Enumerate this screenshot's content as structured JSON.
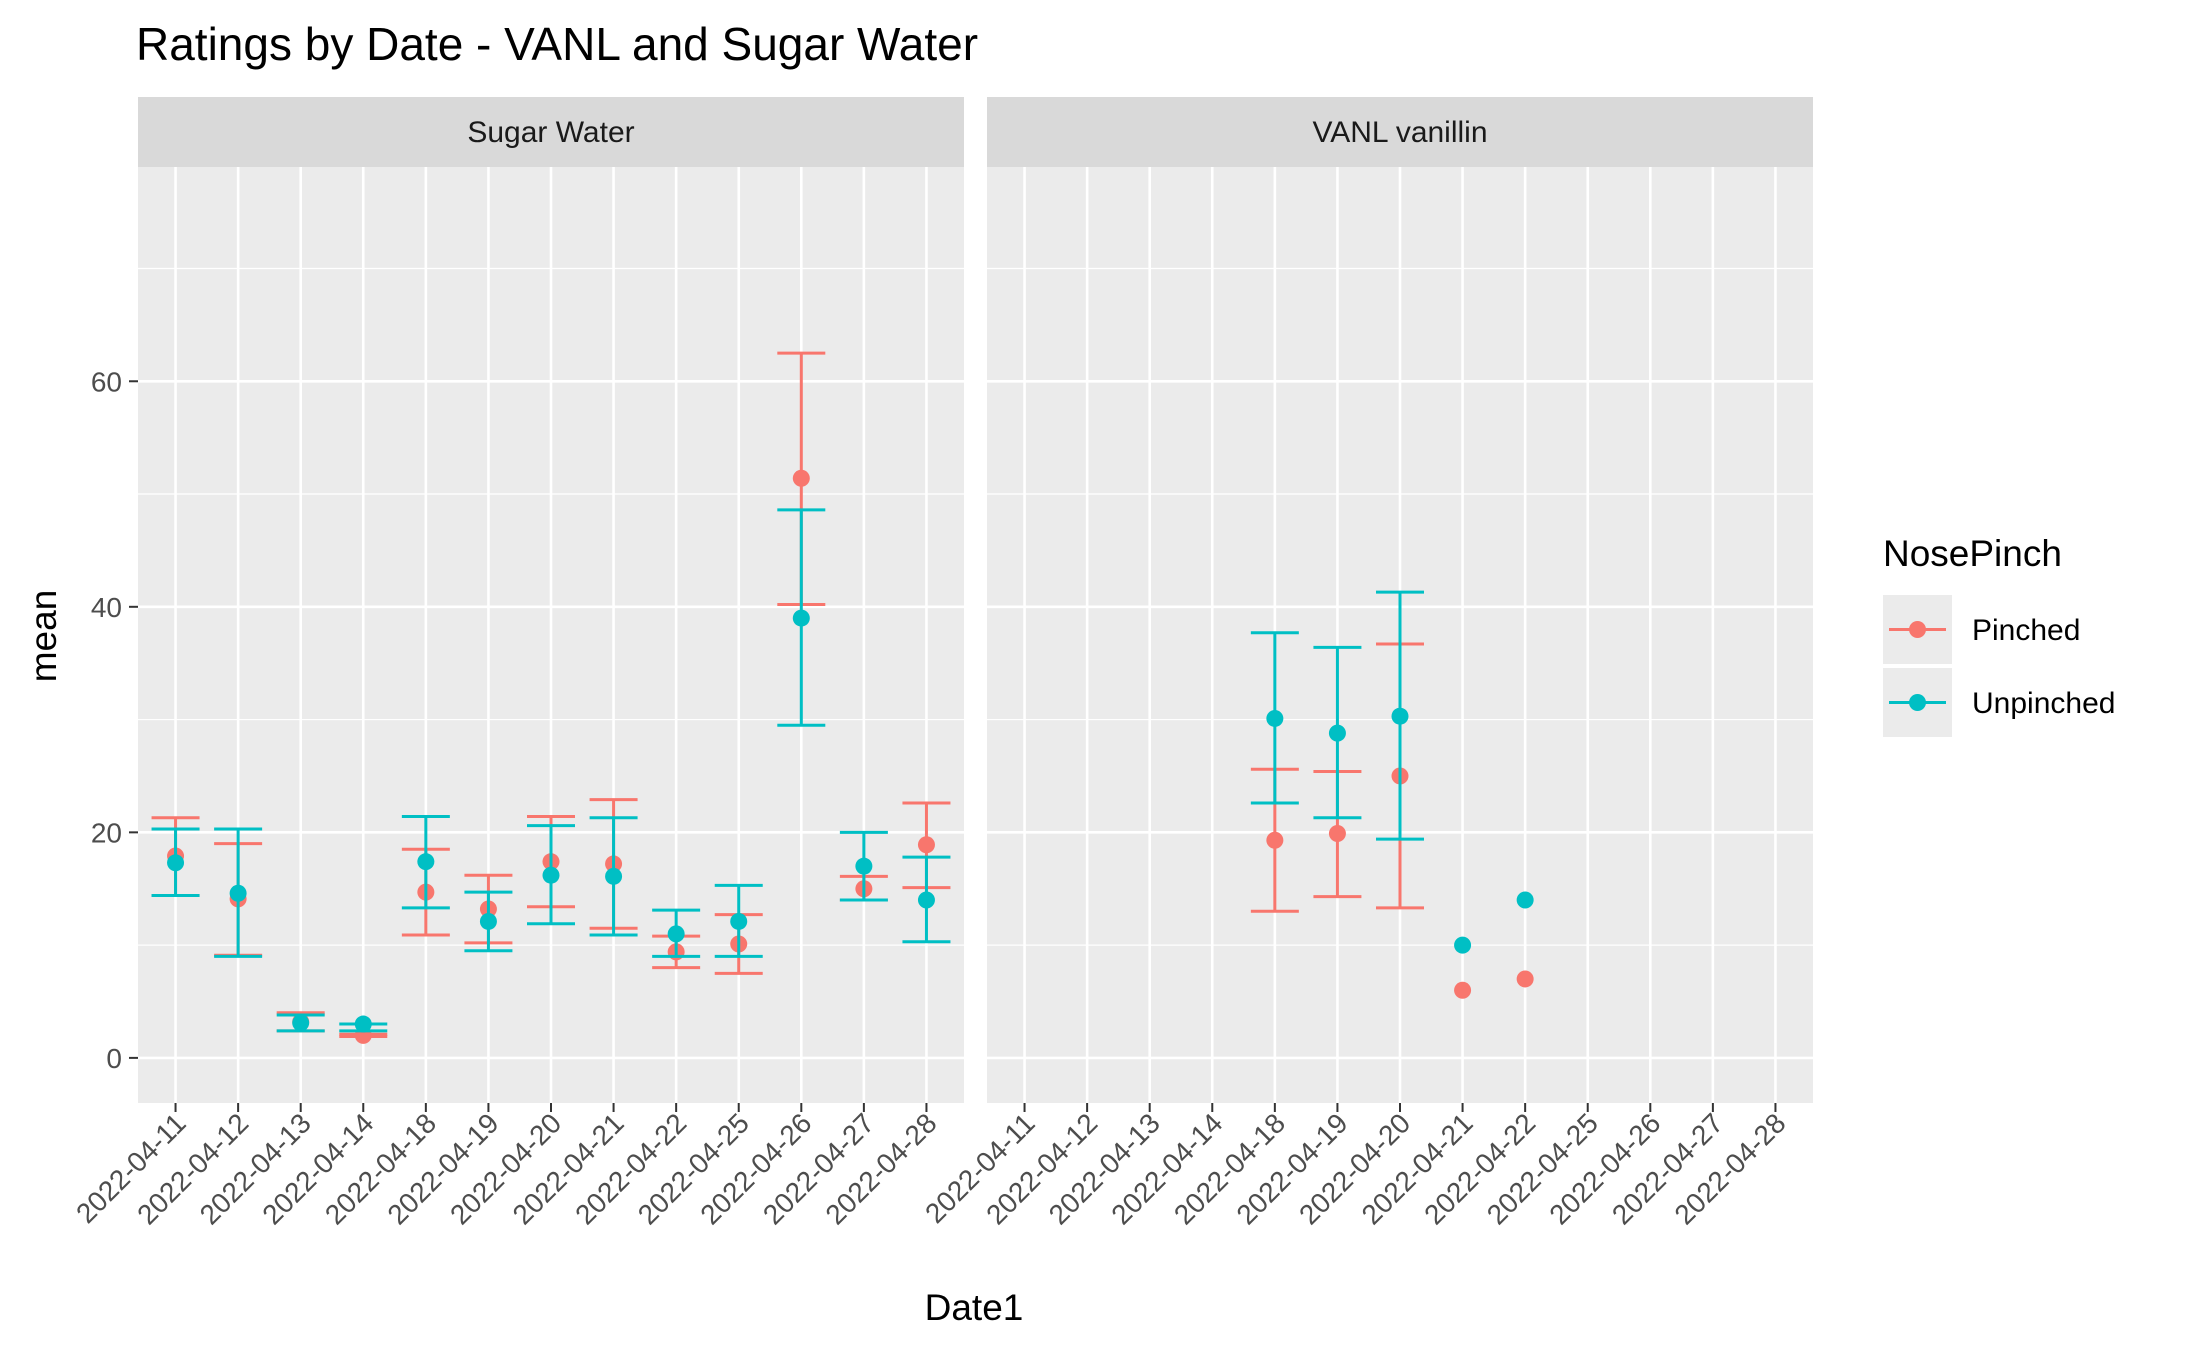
{
  "chart_data": {
    "type": "scatter",
    "title": "Ratings by Date - VANL and Sugar Water",
    "xlabel": "Date1",
    "ylabel": "mean",
    "ylim": [
      -4,
      79
    ],
    "yticks": [
      0,
      20,
      40,
      60
    ],
    "categories": [
      "2022-04-11",
      "2022-04-12",
      "2022-04-13",
      "2022-04-14",
      "2022-04-18",
      "2022-04-19",
      "2022-04-20",
      "2022-04-21",
      "2022-04-22",
      "2022-04-25",
      "2022-04-26",
      "2022-04-27",
      "2022-04-28"
    ],
    "legend": {
      "title": "NosePinch",
      "entries": [
        {
          "name": "Pinched",
          "color": "#F8766D"
        },
        {
          "name": "Unpinched",
          "color": "#00BFC4"
        }
      ],
      "position": "right"
    },
    "grid": true,
    "panels": [
      {
        "label": "Sugar Water",
        "series": [
          {
            "name": "Pinched",
            "color": "#F8766D",
            "points": [
              {
                "x": "2022-04-11",
                "y": 17.9,
                "lo": 14.4,
                "hi": 21.3
              },
              {
                "x": "2022-04-12",
                "y": 14.1,
                "lo": 9.1,
                "hi": 19.0
              },
              {
                "x": "2022-04-13",
                "y": 3.2,
                "lo": 2.4,
                "hi": 4.0
              },
              {
                "x": "2022-04-14",
                "y": 2.0,
                "lo": 1.9,
                "hi": 2.1
              },
              {
                "x": "2022-04-18",
                "y": 14.7,
                "lo": 10.9,
                "hi": 18.5
              },
              {
                "x": "2022-04-19",
                "y": 13.2,
                "lo": 10.2,
                "hi": 16.2
              },
              {
                "x": "2022-04-20",
                "y": 17.4,
                "lo": 13.4,
                "hi": 21.4
              },
              {
                "x": "2022-04-21",
                "y": 17.2,
                "lo": 11.5,
                "hi": 22.9
              },
              {
                "x": "2022-04-22",
                "y": 9.4,
                "lo": 8.0,
                "hi": 10.8
              },
              {
                "x": "2022-04-25",
                "y": 10.1,
                "lo": 7.5,
                "hi": 12.7
              },
              {
                "x": "2022-04-26",
                "y": 51.4,
                "lo": 40.2,
                "hi": 62.5
              },
              {
                "x": "2022-04-27",
                "y": 15.0,
                "lo": 14.0,
                "hi": 16.1
              },
              {
                "x": "2022-04-28",
                "y": 18.9,
                "lo": 15.1,
                "hi": 22.6
              }
            ]
          },
          {
            "name": "Unpinched",
            "color": "#00BFC4",
            "points": [
              {
                "x": "2022-04-11",
                "y": 17.3,
                "lo": 14.4,
                "hi": 20.3
              },
              {
                "x": "2022-04-12",
                "y": 14.6,
                "lo": 9.0,
                "hi": 20.3
              },
              {
                "x": "2022-04-13",
                "y": 3.1,
                "lo": 2.4,
                "hi": 3.8
              },
              {
                "x": "2022-04-14",
                "y": 3.0,
                "lo": 2.4,
                "hi": 3.0
              },
              {
                "x": "2022-04-18",
                "y": 17.4,
                "lo": 13.3,
                "hi": 21.4
              },
              {
                "x": "2022-04-19",
                "y": 12.1,
                "lo": 9.5,
                "hi": 14.7
              },
              {
                "x": "2022-04-20",
                "y": 16.2,
                "lo": 11.9,
                "hi": 20.6
              },
              {
                "x": "2022-04-21",
                "y": 16.1,
                "lo": 10.9,
                "hi": 21.3
              },
              {
                "x": "2022-04-22",
                "y": 11.0,
                "lo": 9.0,
                "hi": 13.1
              },
              {
                "x": "2022-04-25",
                "y": 12.1,
                "lo": 9.0,
                "hi": 15.3
              },
              {
                "x": "2022-04-26",
                "y": 39.0,
                "lo": 29.5,
                "hi": 48.6
              },
              {
                "x": "2022-04-27",
                "y": 17.0,
                "lo": 14.0,
                "hi": 20.0
              },
              {
                "x": "2022-04-28",
                "y": 14.0,
                "lo": 10.3,
                "hi": 17.8
              }
            ]
          }
        ]
      },
      {
        "label": "VANL vanillin",
        "series": [
          {
            "name": "Pinched",
            "color": "#F8766D",
            "points": [
              {
                "x": "2022-04-18",
                "y": 19.3,
                "lo": 13.0,
                "hi": 25.6
              },
              {
                "x": "2022-04-19",
                "y": 19.9,
                "lo": 14.3,
                "hi": 25.4
              },
              {
                "x": "2022-04-20",
                "y": 25.0,
                "lo": 13.3,
                "hi": 36.7
              },
              {
                "x": "2022-04-21",
                "y": 6.0
              },
              {
                "x": "2022-04-22",
                "y": 7.0
              }
            ]
          },
          {
            "name": "Unpinched",
            "color": "#00BFC4",
            "points": [
              {
                "x": "2022-04-18",
                "y": 30.1,
                "lo": 22.6,
                "hi": 37.7
              },
              {
                "x": "2022-04-19",
                "y": 28.8,
                "lo": 21.3,
                "hi": 36.4
              },
              {
                "x": "2022-04-20",
                "y": 30.3,
                "lo": 19.4,
                "hi": 41.3
              },
              {
                "x": "2022-04-21",
                "y": 10.0
              },
              {
                "x": "2022-04-22",
                "y": 14.0
              }
            ]
          }
        ]
      }
    ]
  }
}
